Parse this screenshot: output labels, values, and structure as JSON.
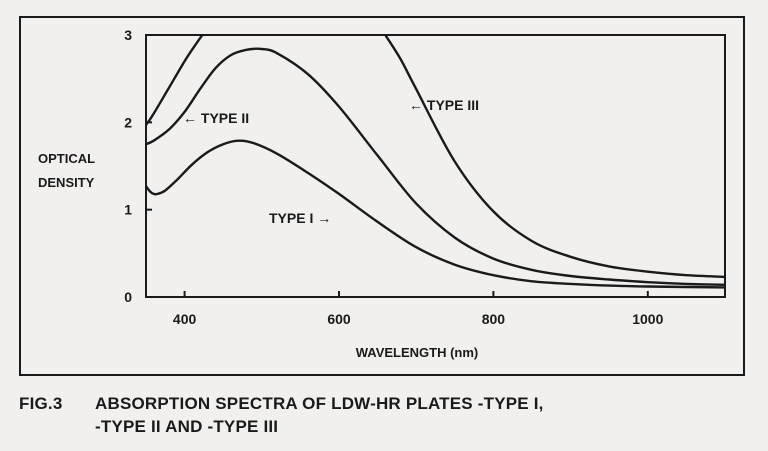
{
  "chart_data": {
    "type": "line",
    "xlabel": "WAVELENGTH (nm)",
    "ylabel_line1": "OPTICAL",
    "ylabel_line2": "DENSITY",
    "xlim": [
      350,
      1100
    ],
    "ylim": [
      0,
      3
    ],
    "x_ticks": [
      400,
      600,
      800,
      1000
    ],
    "y_ticks": [
      0,
      1,
      2,
      3
    ],
    "grid": false,
    "series": [
      {
        "name": "TYPE I",
        "label_text": "TYPE I",
        "label_arrow": "→",
        "points": [
          [
            350,
            1.27
          ],
          [
            355,
            1.21
          ],
          [
            360,
            1.18
          ],
          [
            365,
            1.18
          ],
          [
            375,
            1.22
          ],
          [
            390,
            1.34
          ],
          [
            410,
            1.52
          ],
          [
            430,
            1.66
          ],
          [
            450,
            1.75
          ],
          [
            470,
            1.79
          ],
          [
            490,
            1.76
          ],
          [
            520,
            1.64
          ],
          [
            560,
            1.42
          ],
          [
            600,
            1.18
          ],
          [
            650,
            0.86
          ],
          [
            700,
            0.57
          ],
          [
            750,
            0.37
          ],
          [
            800,
            0.25
          ],
          [
            850,
            0.18
          ],
          [
            900,
            0.15
          ],
          [
            950,
            0.13
          ],
          [
            1000,
            0.12
          ],
          [
            1050,
            0.115
          ],
          [
            1100,
            0.11
          ]
        ]
      },
      {
        "name": "TYPE II",
        "label_text": "TYPE II",
        "label_arrow": "←",
        "points": [
          [
            350,
            1.75
          ],
          [
            360,
            1.79
          ],
          [
            380,
            1.92
          ],
          [
            400,
            2.12
          ],
          [
            420,
            2.38
          ],
          [
            440,
            2.62
          ],
          [
            460,
            2.77
          ],
          [
            480,
            2.83
          ],
          [
            500,
            2.84
          ],
          [
            520,
            2.79
          ],
          [
            560,
            2.55
          ],
          [
            600,
            2.18
          ],
          [
            650,
            1.62
          ],
          [
            700,
            1.07
          ],
          [
            750,
            0.68
          ],
          [
            800,
            0.44
          ],
          [
            850,
            0.31
          ],
          [
            900,
            0.24
          ],
          [
            950,
            0.2
          ],
          [
            1000,
            0.17
          ],
          [
            1050,
            0.15
          ],
          [
            1100,
            0.14
          ]
        ]
      },
      {
        "name": "TYPE III",
        "label_text": "TYPE III",
        "label_arrow": "←",
        "points": [
          [
            350,
            1.97
          ],
          [
            360,
            2.1
          ],
          [
            380,
            2.4
          ],
          [
            400,
            2.7
          ],
          [
            415,
            2.9
          ],
          [
            423,
            3.0
          ],
          null,
          [
            660,
            3.0
          ],
          [
            680,
            2.72
          ],
          [
            700,
            2.38
          ],
          [
            750,
            1.55
          ],
          [
            800,
            0.98
          ],
          [
            850,
            0.64
          ],
          [
            900,
            0.46
          ],
          [
            950,
            0.35
          ],
          [
            1000,
            0.29
          ],
          [
            1050,
            0.25
          ],
          [
            1100,
            0.23
          ]
        ]
      }
    ]
  },
  "caption": {
    "line1_num": "FIG.3",
    "line1_text": "ABSORPTION SPECTRA OF LDW-HR PLATES -TYPE I,",
    "line2_text": "-TYPE II  AND -TYPE III"
  }
}
